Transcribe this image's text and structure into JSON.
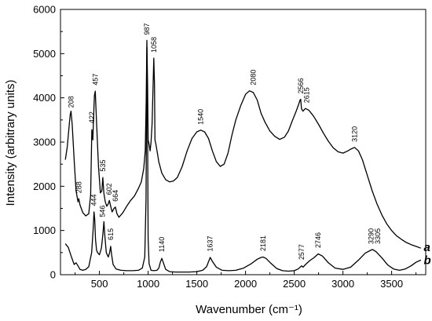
{
  "chart_data": {
    "type": "line",
    "title": "",
    "xlabel": "Wavenumber (cm⁻¹)",
    "ylabel": "Intensity (arbitrary units)",
    "xlim": [
      100,
      3850
    ],
    "ylim": [
      0,
      6000
    ],
    "xticks": [
      500,
      1000,
      1500,
      2000,
      2500,
      3000,
      3500
    ],
    "yticks": [
      0,
      1000,
      2000,
      3000,
      4000,
      5000,
      6000
    ],
    "grid": false,
    "series": [
      {
        "name": "a",
        "x": [
          150,
          170,
          190,
          200,
          208,
          220,
          240,
          260,
          280,
          288,
          300,
          330,
          360,
          390,
          410,
          422,
          432,
          440,
          448,
          457,
          470,
          490,
          510,
          525,
          535,
          545,
          560,
          575,
          590,
          602,
          615,
          630,
          650,
          664,
          680,
          700,
          740,
          780,
          820,
          860,
          900,
          930,
          955,
          970,
          980,
          987,
          994,
          1000,
          1010,
          1020,
          1030,
          1040,
          1050,
          1058,
          1065,
          1070,
          1080,
          1095,
          1110,
          1140,
          1180,
          1220,
          1260,
          1300,
          1350,
          1400,
          1450,
          1500,
          1540,
          1580,
          1620,
          1660,
          1700,
          1740,
          1780,
          1820,
          1860,
          1900,
          1950,
          2000,
          2040,
          2080,
          2120,
          2160,
          2200,
          2250,
          2300,
          2350,
          2400,
          2440,
          2480,
          2520,
          2545,
          2560,
          2566,
          2575,
          2590,
          2615,
          2650,
          2700,
          2750,
          2800,
          2850,
          2900,
          2950,
          3000,
          3050,
          3080,
          3120,
          3160,
          3200,
          3250,
          3300,
          3350,
          3400,
          3450,
          3500,
          3550,
          3600,
          3650,
          3700,
          3750,
          3800
        ],
        "y": [
          2600,
          2900,
          3400,
          3620,
          3700,
          3400,
          2600,
          1900,
          1650,
          1720,
          1580,
          1400,
          1330,
          1380,
          1800,
          3280,
          3050,
          3600,
          4050,
          4150,
          3450,
          2450,
          1850,
          1900,
          2200,
          1850,
          1650,
          1550,
          1600,
          1680,
          1550,
          1420,
          1500,
          1530,
          1380,
          1300,
          1400,
          1550,
          1680,
          1780,
          1950,
          2100,
          2400,
          2800,
          3900,
          5300,
          4300,
          3050,
          2950,
          2800,
          3000,
          3400,
          4200,
          4900,
          4300,
          3050,
          2950,
          2750,
          2550,
          2300,
          2150,
          2100,
          2120,
          2200,
          2450,
          2800,
          3080,
          3230,
          3270,
          3230,
          3080,
          2800,
          2560,
          2450,
          2500,
          2750,
          3150,
          3500,
          3820,
          4080,
          4160,
          4120,
          3950,
          3650,
          3450,
          3250,
          3130,
          3060,
          3110,
          3250,
          3480,
          3700,
          3850,
          3950,
          3970,
          3750,
          3700,
          3760,
          3720,
          3580,
          3400,
          3200,
          3020,
          2870,
          2780,
          2750,
          2800,
          2840,
          2880,
          2800,
          2600,
          2250,
          1900,
          1600,
          1350,
          1150,
          1000,
          880,
          800,
          730,
          680,
          640,
          600
        ]
      },
      {
        "name": "b",
        "x": [
          150,
          180,
          210,
          240,
          260,
          280,
          300,
          330,
          360,
          390,
          420,
          435,
          444,
          452,
          460,
          470,
          480,
          500,
          520,
          535,
          546,
          555,
          570,
          590,
          605,
          615,
          625,
          640,
          670,
          720,
          780,
          840,
          900,
          940,
          965,
          978,
          987,
          994,
          1000,
          1010,
          1030,
          1060,
          1090,
          1110,
          1125,
          1140,
          1155,
          1180,
          1220,
          1280,
          1350,
          1420,
          1500,
          1560,
          1600,
          1637,
          1660,
          1700,
          1760,
          1830,
          1900,
          1980,
          2060,
          2120,
          2160,
          2181,
          2210,
          2260,
          2320,
          2380,
          2440,
          2500,
          2540,
          2565,
          2577,
          2590,
          2620,
          2660,
          2700,
          2746,
          2790,
          2850,
          2920,
          3000,
          3080,
          3160,
          3230,
          3290,
          3305,
          3340,
          3400,
          3460,
          3520,
          3580,
          3640,
          3700,
          3750,
          3800
        ],
        "y": [
          700,
          620,
          420,
          230,
          270,
          200,
          120,
          100,
          120,
          180,
          500,
          1000,
          1420,
          1250,
          800,
          560,
          500,
          450,
          600,
          900,
          1200,
          900,
          500,
          400,
          500,
          640,
          450,
          230,
          130,
          100,
          90,
          90,
          100,
          150,
          400,
          1700,
          5150,
          3300,
          800,
          250,
          100,
          90,
          100,
          150,
          280,
          370,
          280,
          120,
          70,
          60,
          60,
          60,
          70,
          100,
          180,
          390,
          300,
          170,
          100,
          90,
          100,
          150,
          250,
          350,
          390,
          400,
          370,
          260,
          140,
          90,
          80,
          90,
          130,
          180,
          200,
          170,
          240,
          320,
          380,
          470,
          420,
          270,
          150,
          120,
          170,
          330,
          490,
          560,
          570,
          520,
          380,
          220,
          130,
          100,
          130,
          200,
          280,
          330
        ]
      }
    ],
    "peak_labels": [
      {
        "text": "208",
        "x": 208,
        "y": 3720
      },
      {
        "text": "288",
        "x": 288,
        "y": 1790
      },
      {
        "text": "422",
        "x": 422,
        "y": 3370
      },
      {
        "text": "457",
        "x": 457,
        "y": 4230
      },
      {
        "text": "535",
        "x": 535,
        "y": 2280
      },
      {
        "text": "602",
        "x": 602,
        "y": 1750
      },
      {
        "text": "664",
        "x": 664,
        "y": 1600
      },
      {
        "text": "987",
        "x": 987,
        "y": 5370
      },
      {
        "text": "1058",
        "x": 1058,
        "y": 4970
      },
      {
        "text": "1540",
        "x": 1540,
        "y": 3340
      },
      {
        "text": "2080",
        "x": 2080,
        "y": 4230
      },
      {
        "text": "2566",
        "x": 2566,
        "y": 4040
      },
      {
        "text": "2615",
        "x": 2628,
        "y": 3830
      },
      {
        "text": "3120",
        "x": 3120,
        "y": 2950
      },
      {
        "text": "444",
        "x": 444,
        "y": 1500
      },
      {
        "text": "546",
        "x": 530,
        "y": 1250
      },
      {
        "text": "615",
        "x": 615,
        "y": 730
      },
      {
        "text": "1140",
        "x": 1140,
        "y": 460
      },
      {
        "text": "1637",
        "x": 1637,
        "y": 470
      },
      {
        "text": "2181",
        "x": 2181,
        "y": 480
      },
      {
        "text": "2577",
        "x": 2577,
        "y": 280
      },
      {
        "text": "2746",
        "x": 2746,
        "y": 550
      },
      {
        "text": "3290",
        "x": 3290,
        "y": 640
      },
      {
        "text": "3305",
        "x": 3360,
        "y": 640
      }
    ],
    "series_tags": [
      {
        "text": "a",
        "x": 3830,
        "y": 620
      },
      {
        "text": "b",
        "x": 3830,
        "y": 330
      }
    ]
  }
}
